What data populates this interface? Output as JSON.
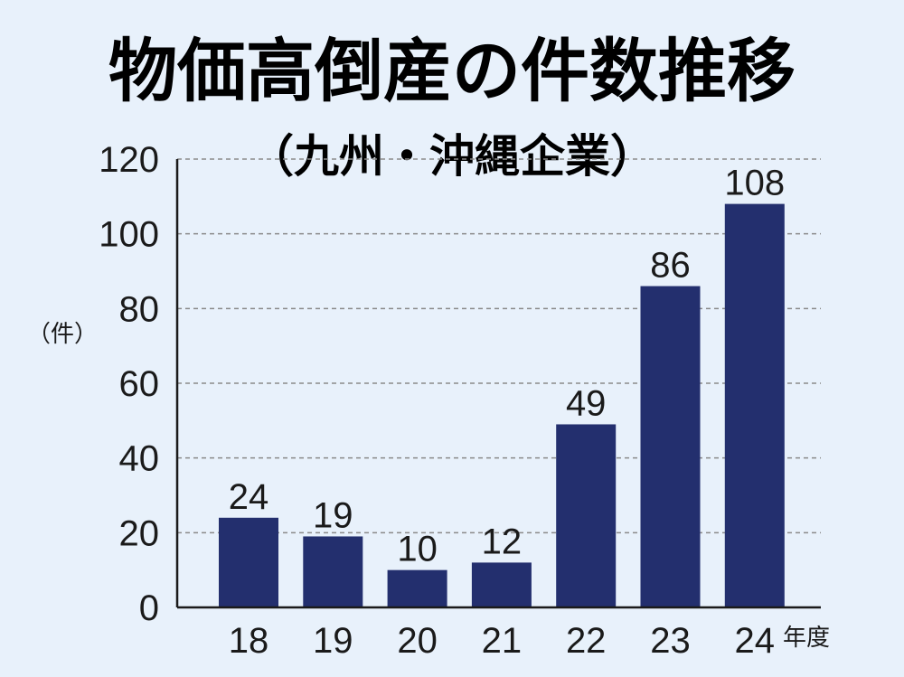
{
  "title": "物価高倒産の件数推移",
  "subtitle": "（九州・沖縄企業）",
  "colors": {
    "background": "#e8f1fb",
    "bar": "#232f6e",
    "axis": "#1a1a1a",
    "grid": "#8a8a8a"
  },
  "chart_data": {
    "type": "bar",
    "categories": [
      "18",
      "19",
      "20",
      "21",
      "22",
      "23",
      "24"
    ],
    "values": [
      24,
      19,
      10,
      12,
      49,
      86,
      108
    ],
    "ylim": [
      0,
      120
    ],
    "yticks": [
      "0",
      "20",
      "40",
      "60",
      "80",
      "100",
      "120"
    ],
    "ylabel": "（件）",
    "xlabel": "年度",
    "grid": "horizontal-dashed",
    "legend": "none"
  }
}
